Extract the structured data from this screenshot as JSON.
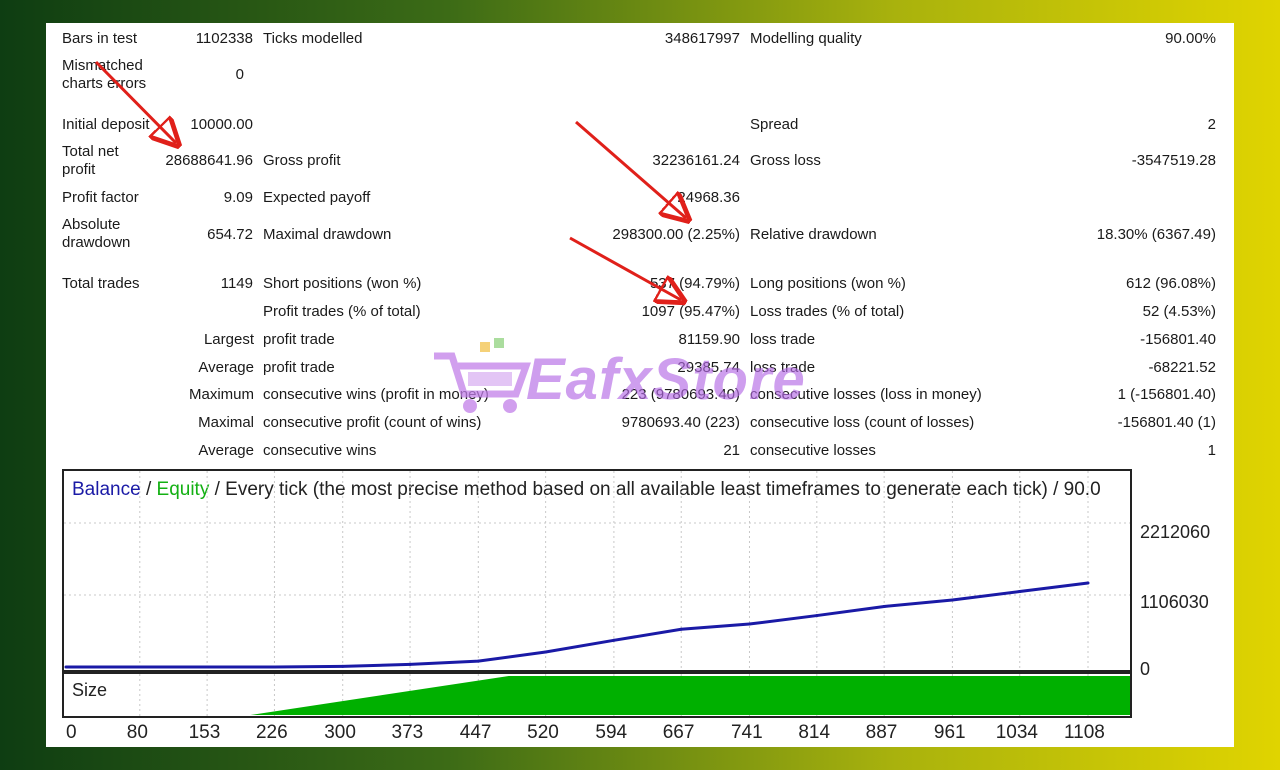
{
  "report": {
    "bars_in_test_label": "Bars in test",
    "bars_in_test_value": "1102338",
    "ticks_modelled_label": "Ticks modelled",
    "ticks_modelled_value": "348617997",
    "modelling_quality_label": "Modelling quality",
    "modelling_quality_value": "90.00%",
    "mismatched_label": "Mismatched charts errors",
    "mismatched_value": "0",
    "initial_deposit_label": "Initial deposit",
    "initial_deposit_value": "10000.00",
    "spread_label": "Spread",
    "spread_value": "2",
    "total_net_profit_label": "Total net profit",
    "total_net_profit_value": "28688641.96",
    "gross_profit_label": "Gross profit",
    "gross_profit_value": "32236161.24",
    "gross_loss_label": "Gross loss",
    "gross_loss_value": "-3547519.28",
    "profit_factor_label": "Profit factor",
    "profit_factor_value": "9.09",
    "expected_payoff_label": "Expected payoff",
    "expected_payoff_value": "24968.36",
    "absolute_drawdown_label": "Absolute drawdown",
    "absolute_drawdown_value": "654.72",
    "maximal_drawdown_label": "Maximal drawdown",
    "maximal_drawdown_value": "298300.00 (2.25%)",
    "relative_drawdown_label": "Relative drawdown",
    "relative_drawdown_value": "18.30% (6367.49)",
    "total_trades_label": "Total trades",
    "total_trades_value": "1149",
    "short_positions_label": "Short positions (won %)",
    "short_positions_value": "537 (94.79%)",
    "long_positions_label": "Long positions (won %)",
    "long_positions_value": "612 (96.08%)",
    "profit_trades_label": "Profit trades (% of total)",
    "profit_trades_value": "1097 (95.47%)",
    "loss_trades_label": "Loss trades (% of total)",
    "loss_trades_value": "52 (4.53%)",
    "largest_label": "Largest",
    "largest_profit_label": "profit trade",
    "largest_profit_value": "81159.90",
    "largest_loss_label": "loss trade",
    "largest_loss_value": "-156801.40",
    "average_label": "Average",
    "average_profit_label": "profit trade",
    "average_profit_value": "29385.74",
    "average_loss_label": "loss trade",
    "average_loss_value": "-68221.52",
    "maximum_label": "Maximum",
    "max_cons_wins_label": "consecutive wins (profit in money)",
    "max_cons_wins_value": "223 (9780693.40)",
    "max_cons_losses_label": "consecutive losses (loss in money)",
    "max_cons_losses_value": "1 (-156801.40)",
    "maximal_label": "Maximal",
    "maximal_cons_profit_label": "consecutive profit (count of wins)",
    "maximal_cons_profit_value": "9780693.40 (223)",
    "maximal_cons_loss_label": "consecutive loss (count of losses)",
    "maximal_cons_loss_value": "-156801.40 (1)",
    "average2_label": "Average",
    "avg_cons_wins_label": "consecutive wins",
    "avg_cons_wins_value": "21",
    "avg_cons_losses_label": "consecutive losses",
    "avg_cons_losses_value": "1"
  },
  "chart": {
    "title_balance": "Balance",
    "title_sep1": " / ",
    "title_equity": "Equity",
    "title_rest": " / Every tick (the most precise method based on all available least timeframes to generate each tick) / 90.0",
    "size_label": "Size",
    "y_labels": [
      "2212060",
      "1106030",
      "0"
    ],
    "x_labels": [
      "0",
      "80",
      "153",
      "226",
      "300",
      "373",
      "447",
      "520",
      "594",
      "667",
      "741",
      "814",
      "887",
      "961",
      "1034",
      "1108"
    ],
    "colors": {
      "balance": "#1a1aa6",
      "equity": "#13b013",
      "size": "#00b000"
    }
  },
  "chart_data": {
    "type": "line",
    "x": [
      0,
      80,
      153,
      226,
      300,
      373,
      447,
      520,
      594,
      667,
      741,
      814,
      887,
      961,
      1034,
      1108
    ],
    "series": [
      {
        "name": "Balance",
        "values": [
          0,
          0,
          0,
          0,
          10000,
          40000,
          90000,
          230000,
          410000,
          580000,
          660000,
          790000,
          930000,
          1030000,
          1160000,
          1290000
        ]
      }
    ],
    "ylim": [
      0,
      2212060
    ],
    "ylabel": "",
    "xlabel": ""
  },
  "watermark": {
    "text": "EafxStore",
    "icon": "shopping-cart-icon"
  }
}
